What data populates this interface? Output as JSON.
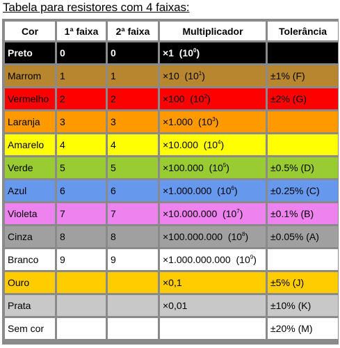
{
  "title": "Tabela para resistores com 4 faixas:",
  "headers": [
    "Cor",
    "1ª faixa",
    "2ª faixa",
    "Multiplicador",
    "Tolerância"
  ],
  "rows": [
    {
      "cor": "Preto",
      "f1": "0",
      "f2": "0",
      "mult": "×1",
      "pow": "(10",
      "exp": "0",
      "tol": "",
      "color": "#000000",
      "text": "#ffffff",
      "bold": true,
      "multbold": true
    },
    {
      "cor": "Marrom",
      "f1": "1",
      "f2": "1",
      "mult": "×10",
      "pow": "(10",
      "exp": "1",
      "tol": "±1% (F)",
      "color": "#b8862e",
      "text": "#000000",
      "bold": false,
      "multbold": false
    },
    {
      "cor": "Vermelho",
      "f1": "2",
      "f2": "2",
      "mult": "×100",
      "pow": "(10",
      "exp": "2",
      "tol": "±2% (G)",
      "color": "#ff0000",
      "text": "#000000",
      "bold": false,
      "multbold": false
    },
    {
      "cor": "Laranja",
      "f1": "3",
      "f2": "3",
      "mult": "×1.000",
      "pow": "(10",
      "exp": "3",
      "tol": "",
      "color": "#ff9900",
      "text": "#000000",
      "bold": false,
      "multbold": false
    },
    {
      "cor": "Amarelo",
      "f1": "4",
      "f2": "4",
      "mult": "×10.000",
      "pow": "(10",
      "exp": "4",
      "tol": "",
      "color": "#ffff00",
      "text": "#000000",
      "bold": false,
      "multbold": false
    },
    {
      "cor": "Verde",
      "f1": "5",
      "f2": "5",
      "mult": "×100.000",
      "pow": "(10",
      "exp": "5",
      "tol": "±0.5% (D)",
      "color": "#99cc33",
      "text": "#000000",
      "bold": false,
      "multbold": false
    },
    {
      "cor": "Azul",
      "f1": "6",
      "f2": "6",
      "mult": "×1.000.000",
      "pow": "(10",
      "exp": "6",
      "tol": "±0.25% (C)",
      "color": "#6699ee",
      "text": "#000000",
      "bold": false,
      "multbold": false
    },
    {
      "cor": "Violeta",
      "f1": "7",
      "f2": "7",
      "mult": "×10.000.000",
      "pow": "(10",
      "exp": "7",
      "tol": "±0.1% (B)",
      "color": "#ee82ee",
      "text": "#000000",
      "bold": false,
      "multbold": false
    },
    {
      "cor": "Cinza",
      "f1": "8",
      "f2": "8",
      "mult": "×100.000.000",
      "pow": "(10",
      "exp": "8",
      "tol": "±0.05% (A)",
      "color": "#a0a0a0",
      "text": "#000000",
      "bold": false,
      "multbold": false
    },
    {
      "cor": "Branco",
      "f1": "9",
      "f2": "9",
      "mult": "×1.000.000.000",
      "pow": "(10",
      "exp": "9",
      "tol": "",
      "color": "#ffffff",
      "text": "#000000",
      "bold": false,
      "multbold": false
    },
    {
      "cor": "Ouro",
      "f1": "",
      "f2": "",
      "mult": "×0,1",
      "pow": "",
      "exp": "",
      "tol": "±5% (J)",
      "color": "#ffcc00",
      "text": "#000000",
      "bold": false,
      "multbold": false
    },
    {
      "cor": "Prata",
      "f1": "",
      "f2": "",
      "mult": "×0,01",
      "pow": "",
      "exp": "",
      "tol": "±10% (K)",
      "color": "#c8c8c8",
      "text": "#000000",
      "bold": false,
      "multbold": false
    },
    {
      "cor": "Sem cor",
      "f1": "",
      "f2": "",
      "mult": "",
      "pow": "",
      "exp": "",
      "tol": "±20% (M)",
      "color": "#ffffff",
      "text": "#000000",
      "bold": false,
      "multbold": false
    }
  ]
}
